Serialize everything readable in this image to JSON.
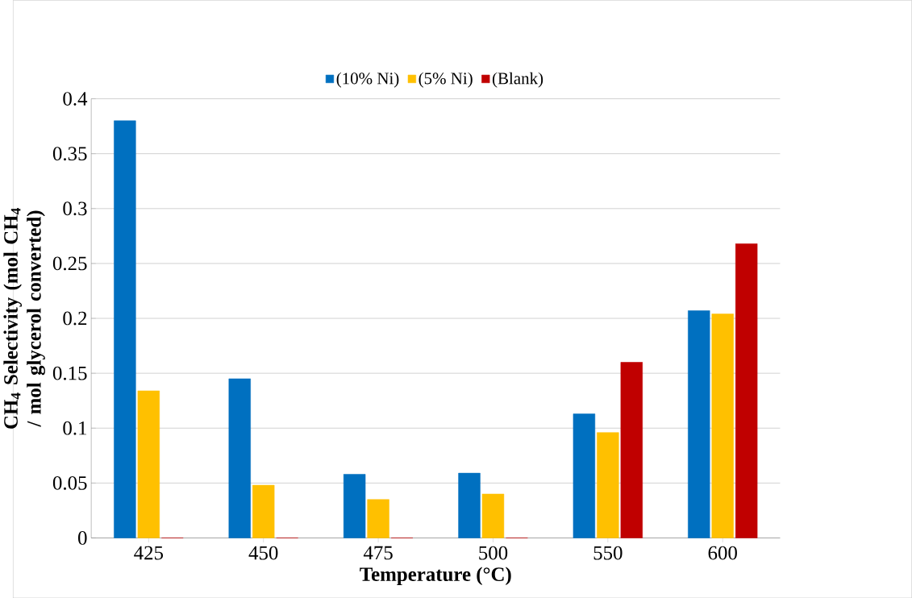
{
  "chart_data": {
    "type": "bar",
    "xlabel": "Temperature (°C)",
    "ylabel": "CH$_{4}$ Selectivity (mol CH$_{4}$ / mol glycerol converted)",
    "categories": [
      "425",
      "450",
      "475",
      "500",
      "550",
      "600"
    ],
    "series": [
      {
        "name": "(10% Ni)",
        "color": "#0070c0",
        "values": [
          0.38,
          0.145,
          0.058,
          0.059,
          0.113,
          0.207
        ]
      },
      {
        "name": "(5% Ni)",
        "color": "#ffc000",
        "values": [
          0.134,
          0.048,
          0.035,
          0.04,
          0.096,
          0.204
        ]
      },
      {
        "name": "(Blank)",
        "color": "#c00000",
        "values": [
          0,
          0,
          0,
          0,
          0.16,
          0.268
        ]
      }
    ],
    "ylim": [
      0,
      0.4
    ],
    "yticks": [
      0,
      0.05,
      0.1,
      0.15,
      0.2,
      0.25,
      0.3,
      0.35,
      0.4
    ],
    "grid": "y",
    "legend": "top"
  }
}
